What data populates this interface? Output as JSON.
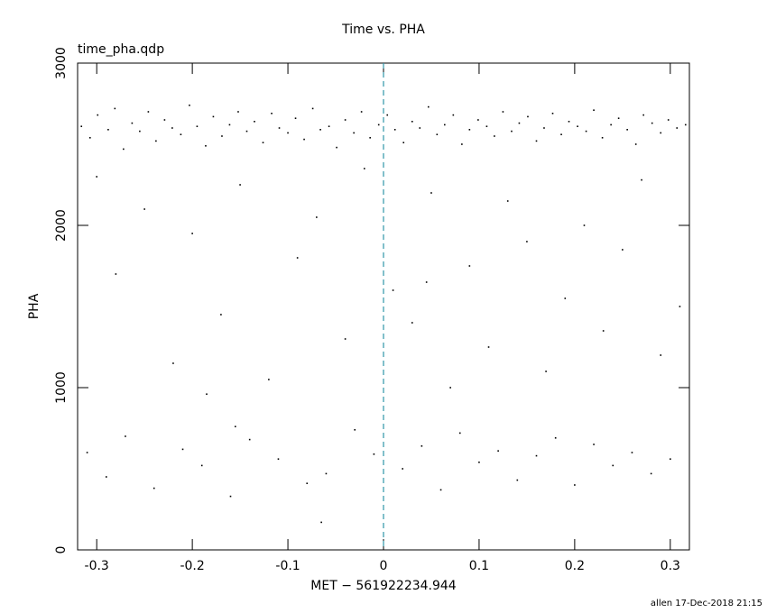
{
  "chart_data": {
    "type": "scatter",
    "title": "Time vs. PHA",
    "annotation": "time_pha.qdp",
    "xlabel": "MET − 561922234.944",
    "ylabel": "PHA",
    "footer": "allen 17-Dec-2018 21:15",
    "color": "#000000",
    "xlim": [
      -0.32,
      0.32
    ],
    "ylim": [
      0,
      3000
    ],
    "xticks": [
      -0.3,
      -0.2,
      -0.1,
      0,
      0.1,
      0.2,
      0.3
    ],
    "yticks": [
      0,
      1000,
      2000,
      3000
    ],
    "vline": 0,
    "vline_color": "#2f95a8",
    "x": [
      -0.316,
      -0.307,
      -0.299,
      -0.288,
      -0.281,
      -0.272,
      -0.263,
      -0.255,
      -0.246,
      -0.238,
      -0.229,
      -0.221,
      -0.212,
      -0.203,
      -0.195,
      -0.186,
      -0.178,
      -0.169,
      -0.161,
      -0.152,
      -0.143,
      -0.135,
      -0.126,
      -0.117,
      -0.109,
      -0.1,
      -0.092,
      -0.083,
      -0.074,
      -0.066,
      -0.057,
      -0.049,
      -0.04,
      -0.031,
      -0.023,
      -0.014,
      -0.005,
      0.004,
      0.012,
      0.021,
      0.03,
      0.038,
      0.047,
      0.056,
      0.064,
      0.073,
      0.082,
      0.09,
      0.099,
      0.108,
      0.116,
      0.125,
      0.134,
      0.142,
      0.151,
      0.16,
      0.168,
      0.177,
      0.186,
      0.194,
      0.203,
      0.212,
      0.22,
      0.229,
      0.238,
      0.246,
      0.255,
      0.264,
      0.272,
      0.281,
      0.29,
      0.298,
      0.307,
      0.316,
      -0.3,
      -0.28,
      -0.25,
      -0.22,
      -0.2,
      -0.17,
      -0.15,
      -0.12,
      -0.09,
      -0.07,
      -0.04,
      -0.02,
      0.01,
      0.03,
      0.05,
      0.07,
      0.09,
      0.11,
      0.13,
      0.15,
      0.17,
      0.19,
      0.21,
      0.23,
      0.25,
      0.27,
      0.29,
      0.31,
      -0.185,
      0.045,
      -0.31,
      -0.29,
      -0.27,
      -0.24,
      -0.21,
      -0.19,
      -0.16,
      -0.14,
      -0.11,
      -0.08,
      -0.06,
      -0.03,
      -0.01,
      0.02,
      0.04,
      0.06,
      0.08,
      0.1,
      0.12,
      0.14,
      0.16,
      0.18,
      0.2,
      0.22,
      0.24,
      0.26,
      0.28,
      0.3,
      -0.065,
      -0.155
    ],
    "values": [
      2610,
      2540,
      2680,
      2590,
      2720,
      2470,
      2630,
      2580,
      2700,
      2520,
      2650,
      2600,
      2560,
      2740,
      2610,
      2490,
      2670,
      2550,
      2620,
      2700,
      2580,
      2640,
      2510,
      2690,
      2600,
      2570,
      2660,
      2530,
      2720,
      2590,
      2610,
      2480,
      2650,
      2570,
      2700,
      2540,
      2620,
      2680,
      2590,
      2510,
      2640,
      2600,
      2730,
      2560,
      2620,
      2680,
      2500,
      2590,
      2650,
      2610,
      2550,
      2700,
      2580,
      2630,
      2670,
      2520,
      2600,
      2690,
      2560,
      2640,
      2610,
      2580,
      2710,
      2540,
      2620,
      2660,
      2590,
      2500,
      2680,
      2630,
      2570,
      2650,
      2600,
      2620,
      2300,
      1700,
      2100,
      1150,
      1950,
      1450,
      2250,
      1050,
      1800,
      2050,
      1300,
      2350,
      1600,
      1400,
      2200,
      1000,
      1750,
      1250,
      2150,
      1900,
      1100,
      1550,
      2000,
      1350,
      1850,
      2280,
      1200,
      1500,
      960,
      1650,
      600,
      450,
      700,
      380,
      620,
      520,
      330,
      680,
      560,
      410,
      470,
      740,
      590,
      500,
      640,
      370,
      720,
      540,
      610,
      430,
      580,
      690,
      400,
      650,
      520,
      600,
      470,
      560,
      170,
      760
    ]
  }
}
